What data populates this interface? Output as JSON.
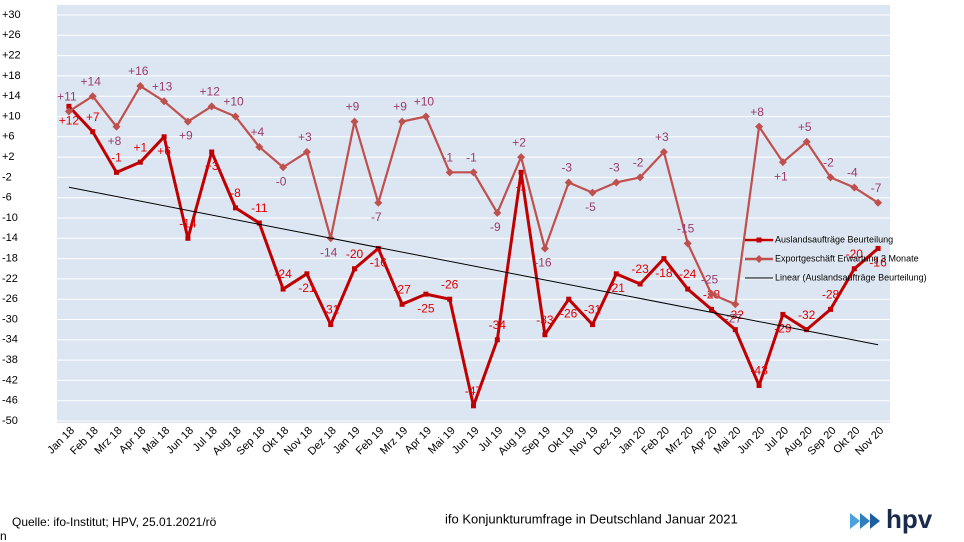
{
  "chart_data": {
    "type": "line",
    "categories": [
      "Jan 18",
      "Feb 18",
      "Mrz 18",
      "Apr 18",
      "Mai 18",
      "Jun 18",
      "Jul 18",
      "Aug 18",
      "Sep 18",
      "Okt 18",
      "Nov 18",
      "Dez 18",
      "Jan 19",
      "Feb 19",
      "Mrz 19",
      "Apr 19",
      "Mai 19",
      "Jun 19",
      "Jul 19",
      "Aug 19",
      "Sep 19",
      "Okt 19",
      "Nov 19",
      "Dez 19",
      "Jan 20",
      "Feb 20",
      "Mrz 20",
      "Apr 20",
      "Mai 20",
      "Jun 20",
      "Jul 20",
      "Aug 20",
      "Sep 20",
      "Okt 20",
      "Nov 20"
    ],
    "series": [
      {
        "name": "Auslandsaufträge Beurteilung",
        "color": "#c00000",
        "marker": "square",
        "values": [
          12,
          7,
          -1,
          1,
          6,
          -14,
          3,
          -8,
          -11,
          -24,
          -21,
          -31,
          -20,
          -16,
          -27,
          -25,
          -26,
          -47,
          -34,
          -1,
          -33,
          -26,
          -31,
          -21,
          -23,
          -18,
          -24,
          -28,
          -32,
          -43,
          -29,
          -32,
          -28,
          -20,
          -16
        ],
        "value_labels": [
          "+12",
          "+7",
          "-1",
          "+1",
          "+6",
          "-14",
          "+3",
          "-8",
          "-11",
          "-24",
          "-21",
          "-31",
          "-20",
          "-16",
          "-27",
          "-25",
          "-26",
          "-47",
          "-34",
          "-1",
          "-33",
          "-26",
          "-31",
          "-21",
          "-23",
          "-18",
          "-24",
          "-28",
          "-32",
          "-43",
          "-29",
          "-32",
          "-28",
          "-20",
          "-16"
        ]
      },
      {
        "name": "Exportgeschäft Erwartung 3 Monate",
        "color": "#c0504d",
        "marker": "diamond",
        "values": [
          11,
          14,
          8,
          16,
          13,
          9,
          12,
          10,
          4,
          0,
          3,
          -14,
          9,
          -7,
          9,
          10,
          -1,
          -1,
          -9,
          2,
          -16,
          -3,
          -5,
          -3,
          -2,
          3,
          -15,
          -25,
          -27,
          8,
          1,
          5,
          -2,
          -4,
          -7
        ],
        "value_labels": [
          "+11",
          "+14",
          "+8",
          "+16",
          "+13",
          "+9",
          "+12",
          "+10",
          "+4",
          "-0",
          "+3",
          "-14",
          "+9",
          "-7",
          "+9",
          "+10",
          "-1",
          "-1",
          "-9",
          "+2",
          "-16",
          "-3",
          "-5",
          "-3",
          "-2",
          "+3",
          "-15",
          "-25",
          "-27",
          "+8",
          "+1",
          "+5",
          "-2",
          "-4",
          "-7"
        ]
      },
      {
        "name": "Linear (Auslandsaufträge Beurteilung)",
        "color": "#000000",
        "trend_of_series": 0
      }
    ],
    "ylim": [
      -50,
      30
    ],
    "yticks": [
      {
        "value": 30,
        "label": "+30"
      },
      {
        "value": 26,
        "label": "+26"
      },
      {
        "value": 22,
        "label": "+22"
      },
      {
        "value": 18,
        "label": "+18"
      },
      {
        "value": 14,
        "label": "+14"
      },
      {
        "value": 10,
        "label": "+10"
      },
      {
        "value": 6,
        "label": "+6"
      },
      {
        "value": 2,
        "label": "+2"
      },
      -2,
      -6,
      -10,
      -14,
      -18,
      -22,
      -26,
      -30,
      -34,
      -38,
      -42,
      -46,
      -50
    ],
    "grid": true,
    "legend": "right",
    "source": "Quelle: ifo-Institut; HPV, 25.01.2021/rö",
    "footer": "ifo Konjunkturumfrage in Deutschland Januar 2021",
    "logo": "hpv",
    "corner_text": "n"
  }
}
